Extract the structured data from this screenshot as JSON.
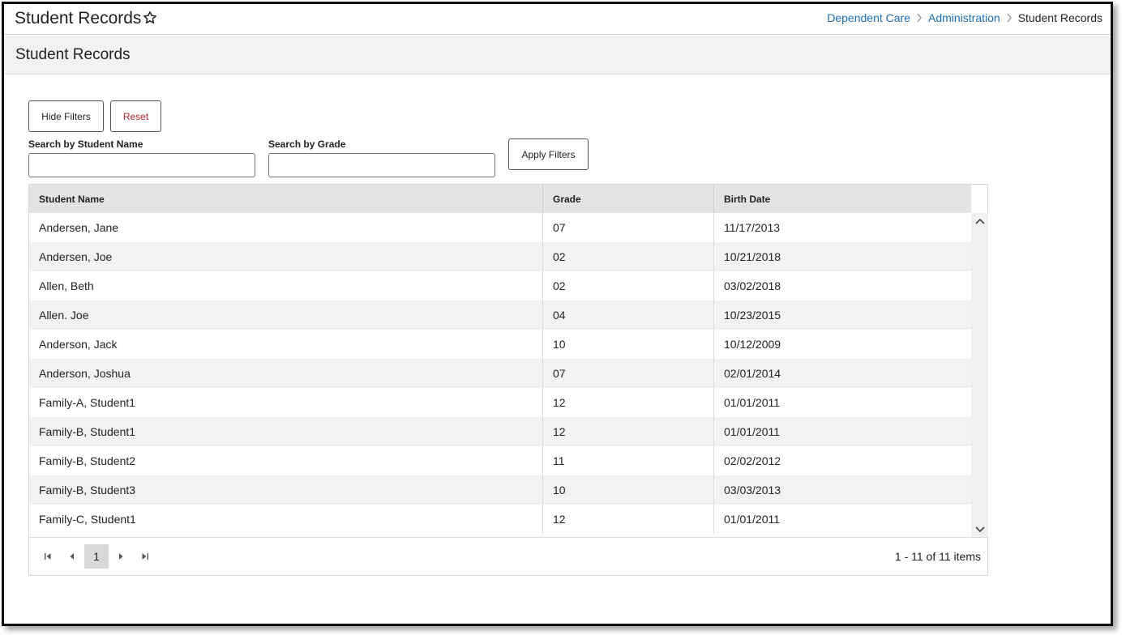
{
  "app": {
    "title": "Student Records"
  },
  "breadcrumb": {
    "items": [
      "Dependent Care",
      "Administration"
    ],
    "current": "Student Records"
  },
  "page": {
    "title": "Student Records"
  },
  "filters": {
    "hide_label": "Hide Filters",
    "reset_label": "Reset",
    "name_label": "Search by Student Name",
    "name_value": "",
    "grade_label": "Search by Grade",
    "grade_value": "",
    "apply_label": "Apply Filters"
  },
  "table": {
    "columns": [
      "Student Name",
      "Grade",
      "Birth Date"
    ],
    "rows": [
      [
        "Andersen, Jane",
        "07",
        "11/17/2013"
      ],
      [
        "Andersen, Joe",
        "02",
        "10/21/2018"
      ],
      [
        "Allen, Beth",
        "02",
        "03/02/2018"
      ],
      [
        "Allen. Joe",
        "04",
        "10/23/2015"
      ],
      [
        "Anderson, Jack",
        "10",
        "10/12/2009"
      ],
      [
        "Anderson, Joshua",
        "07",
        "02/01/2014"
      ],
      [
        "Family-A, Student1",
        "12",
        "01/01/2011"
      ],
      [
        "Family-B, Student1",
        "12",
        "01/01/2011"
      ],
      [
        "Family-B, Student2",
        "11",
        "02/02/2012"
      ],
      [
        "Family-B, Student3",
        "10",
        "03/03/2013"
      ],
      [
        "Family-C, Student1",
        "12",
        "01/01/2011"
      ]
    ]
  },
  "pager": {
    "current_page": "1",
    "info": "1 - 11 of 11 items"
  },
  "colors": {
    "link": "#1a6fb5",
    "reset": "#c0222a",
    "header_bg": "#f2f2f2",
    "grid_header_bg": "#e4e4e4"
  },
  "icons": [
    "star-icon",
    "chevron-right-icon",
    "scroll-up-icon",
    "scroll-down-icon",
    "first-page-icon",
    "prev-page-icon",
    "next-page-icon",
    "last-page-icon"
  ]
}
